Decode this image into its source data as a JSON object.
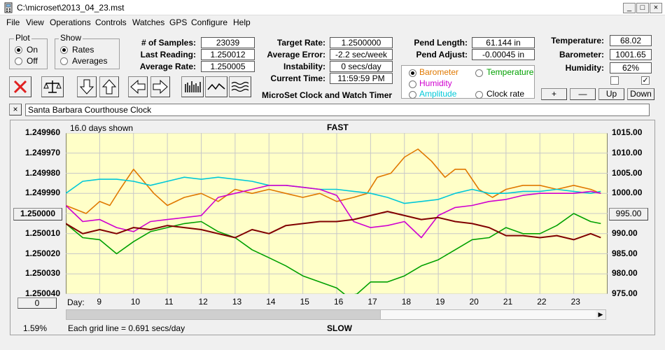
{
  "window": {
    "title": "C:\\microset\\2013_04_23.mst",
    "min_glyph": "_",
    "max_glyph": "□",
    "close_glyph": "×"
  },
  "menu": [
    "File",
    "View",
    "Operations",
    "Controls",
    "Watches",
    "GPS",
    "Configure",
    "Help"
  ],
  "plot_group": {
    "legend": "Plot",
    "on": "On",
    "off": "Off",
    "selected": "On"
  },
  "show_group": {
    "legend": "Show",
    "rates": "Rates",
    "averages": "Averages",
    "selected": "Rates"
  },
  "stats": {
    "samples_label": "# of Samples:",
    "samples": "23039",
    "last_label": "Last Reading:",
    "last": "1.250012",
    "avg_rate_label": "Average Rate:",
    "avg_rate": "1.250005",
    "target_label": "Target Rate:",
    "target": "1.2500000",
    "avg_err_label": "Average Error:",
    "avg_err": "-2.2 sec/week",
    "instab_label": "Instability:",
    "instab": "0 secs/day",
    "time_label": "Current Time:",
    "time": "11:59:59 PM",
    "pend_len_label": "Pend Length:",
    "pend_len": "61.144 in",
    "pend_adj_label": "Pend Adjust:",
    "pend_adj": "-0.00045 in",
    "temp_label": "Temperature:",
    "temp": "68.02",
    "baro_label": "Barometer:",
    "baro": "1001.65",
    "hum_label": "Humidity:",
    "hum": "62%"
  },
  "app_caption": "MicroSet Clock and Watch Timer",
  "aux_options": [
    {
      "label": "Barometer",
      "color": "#e07800",
      "selected": true
    },
    {
      "label": "Temperature",
      "color": "#00a000",
      "selected": false
    },
    {
      "label": "Humidity",
      "color": "#d000d0",
      "selected": false
    },
    {
      "label": "Clock rate",
      "color": "#000000",
      "selected": false
    },
    {
      "label": "Amplitude",
      "color": "#00c8d8",
      "selected": false
    }
  ],
  "aux_buttons": {
    "plus": "+",
    "minus": "—",
    "up": "Up",
    "down": "Down"
  },
  "checkboxes": [
    false,
    true
  ],
  "toolbar_icons": [
    "stop-icon",
    "balance-icon",
    "arrow-down-icon",
    "arrow-up-icon",
    "arrow-left-icon",
    "arrow-right-icon",
    "bar-graph-icon",
    "wave-icon",
    "multiwave-icon"
  ],
  "clock_name": {
    "close": "×",
    "value": "Santa Barbara Courthouse Clock"
  },
  "chart": {
    "days_shown": "16.0 days shown",
    "top_label": "FAST",
    "bottom_label": "SLOW",
    "left_button": "1.250000",
    "right_button": "995.00",
    "zero_button": "0",
    "day_label": "Day:",
    "percent": "1.59%",
    "grid_note": "Each grid line = 0.691 secs/day",
    "scroll_left": "◀",
    "scroll_right": "▶"
  },
  "chart_data": {
    "type": "line",
    "ylim_left": [
      1.24996,
      1.25004
    ],
    "yticks_left": [
      "1.249960",
      "1.249970",
      "1.249980",
      "1.249990",
      "1.250000",
      "1.250010",
      "1.250020",
      "1.250030",
      "1.250040"
    ],
    "ylim_right": [
      975,
      1015
    ],
    "yticks_right": [
      "1015.00",
      "1010.00",
      "1005.00",
      "1000.00",
      "995.00",
      "990.00",
      "985.00",
      "980.00",
      "975.00"
    ],
    "xlim": [
      8,
      24
    ],
    "xticks": [
      9,
      10,
      11,
      12,
      13,
      14,
      15,
      16,
      17,
      18,
      19,
      20,
      21,
      22,
      23
    ],
    "series": [
      {
        "name": "Barometer",
        "color": "#e07800",
        "axis": "right",
        "x": [
          8,
          8.3,
          8.6,
          9,
          9.3,
          9.6,
          10,
          10.3,
          10.6,
          11,
          11.5,
          12,
          12.5,
          13,
          13.5,
          14,
          14.5,
          15,
          15.5,
          16,
          16.5,
          16.9,
          17.2,
          17.6,
          18,
          18.4,
          18.8,
          19.2,
          19.5,
          19.8,
          20.2,
          20.6,
          21,
          21.5,
          22,
          22.5,
          23,
          23.5,
          23.8
        ],
        "y": [
          997,
          996,
          995,
          998,
          997,
          1001,
          1006,
          1003,
          1000,
          997,
          999,
          1000,
          998,
          1001,
          1000,
          1001,
          1000,
          999,
          1000,
          998,
          999,
          1000,
          1004,
          1005,
          1009,
          1011,
          1008,
          1004,
          1006,
          1006,
          1001,
          999,
          1001,
          1002,
          1002,
          1001,
          1002,
          1001,
          1000
        ]
      },
      {
        "name": "Amplitude",
        "color": "#00c8d8",
        "axis": "left",
        "x": [
          8,
          8.5,
          9,
          9.5,
          10,
          10.5,
          11,
          11.5,
          12,
          12.5,
          13,
          13.5,
          14,
          14.5,
          15,
          15.5,
          16,
          16.5,
          17,
          17.5,
          18,
          18.5,
          19,
          19.5,
          20,
          20.5,
          21,
          21.5,
          22,
          22.5,
          23,
          23.5,
          23.8
        ],
        "y": [
          1.24999,
          1.249984,
          1.249983,
          1.249983,
          1.249984,
          1.249986,
          1.249984,
          1.249982,
          1.249983,
          1.249982,
          1.249983,
          1.249984,
          1.249986,
          1.249986,
          1.249987,
          1.249988,
          1.249988,
          1.249989,
          1.24999,
          1.249992,
          1.249995,
          1.249994,
          1.249993,
          1.24999,
          1.249988,
          1.24999,
          1.24999,
          1.249989,
          1.249989,
          1.249988,
          1.249989,
          1.24999,
          1.249989
        ]
      },
      {
        "name": "Humidity",
        "color": "#d000d0",
        "axis": "left",
        "x": [
          8,
          8.5,
          9,
          9.5,
          10,
          10.5,
          11,
          11.5,
          12,
          12.5,
          13,
          13.5,
          14,
          14.5,
          15,
          15.5,
          16,
          16.5,
          17,
          17.5,
          18,
          18.5,
          19,
          19.5,
          20,
          20.5,
          21,
          21.5,
          22,
          22.5,
          23,
          23.5,
          23.8
        ],
        "y": [
          1.249996,
          1.250004,
          1.250003,
          1.250007,
          1.250009,
          1.250004,
          1.250003,
          1.250002,
          1.250001,
          1.249992,
          1.24999,
          1.249988,
          1.249986,
          1.249986,
          1.249987,
          1.249988,
          1.249991,
          1.250004,
          1.250007,
          1.250006,
          1.250004,
          1.250012,
          1.250001,
          1.249997,
          1.249996,
          1.249994,
          1.249993,
          1.249991,
          1.24999,
          1.24999,
          1.24999,
          1.249989,
          1.24999
        ]
      },
      {
        "name": "Temperature",
        "color": "#00a000",
        "axis": "left",
        "x": [
          8,
          8.5,
          9,
          9.5,
          10,
          10.5,
          11,
          11.5,
          12,
          12.5,
          13,
          13.5,
          14,
          14.5,
          15,
          15.5,
          16,
          16.3,
          16.6,
          17,
          17.5,
          18,
          18.5,
          19,
          19.5,
          20,
          20.5,
          21,
          21.5,
          22,
          22.5,
          23,
          23.5,
          23.8
        ],
        "y": [
          1.250005,
          1.250012,
          1.250013,
          1.25002,
          1.250014,
          1.250009,
          1.250007,
          1.250005,
          1.250004,
          1.250009,
          1.250012,
          1.250018,
          1.250022,
          1.250026,
          1.250031,
          1.250034,
          1.250037,
          1.250041,
          1.25004,
          1.250034,
          1.250034,
          1.250031,
          1.250026,
          1.250023,
          1.250018,
          1.250013,
          1.250012,
          1.250007,
          1.25001,
          1.25001,
          1.250006,
          1.25,
          1.250004,
          1.250005
        ]
      },
      {
        "name": "Clock rate",
        "color": "#800000",
        "axis": "left",
        "x": [
          8,
          8.5,
          9,
          9.5,
          10,
          10.5,
          11,
          11.5,
          12,
          12.5,
          13,
          13.5,
          14,
          14.5,
          15,
          15.5,
          16,
          16.5,
          17,
          17.5,
          18,
          18.5,
          19,
          19.5,
          20,
          20.5,
          21,
          21.5,
          22,
          22.5,
          23,
          23.5,
          23.8
        ],
        "y": [
          1.250005,
          1.25001,
          1.250008,
          1.25001,
          1.250007,
          1.250008,
          1.250006,
          1.250007,
          1.250008,
          1.25001,
          1.250012,
          1.250008,
          1.25001,
          1.250006,
          1.250005,
          1.250004,
          1.250004,
          1.250003,
          1.250001,
          1.249999,
          1.250001,
          1.250003,
          1.250002,
          1.250004,
          1.250005,
          1.250007,
          1.250011,
          1.250011,
          1.250012,
          1.250011,
          1.250013,
          1.25001,
          1.250012
        ]
      }
    ]
  }
}
